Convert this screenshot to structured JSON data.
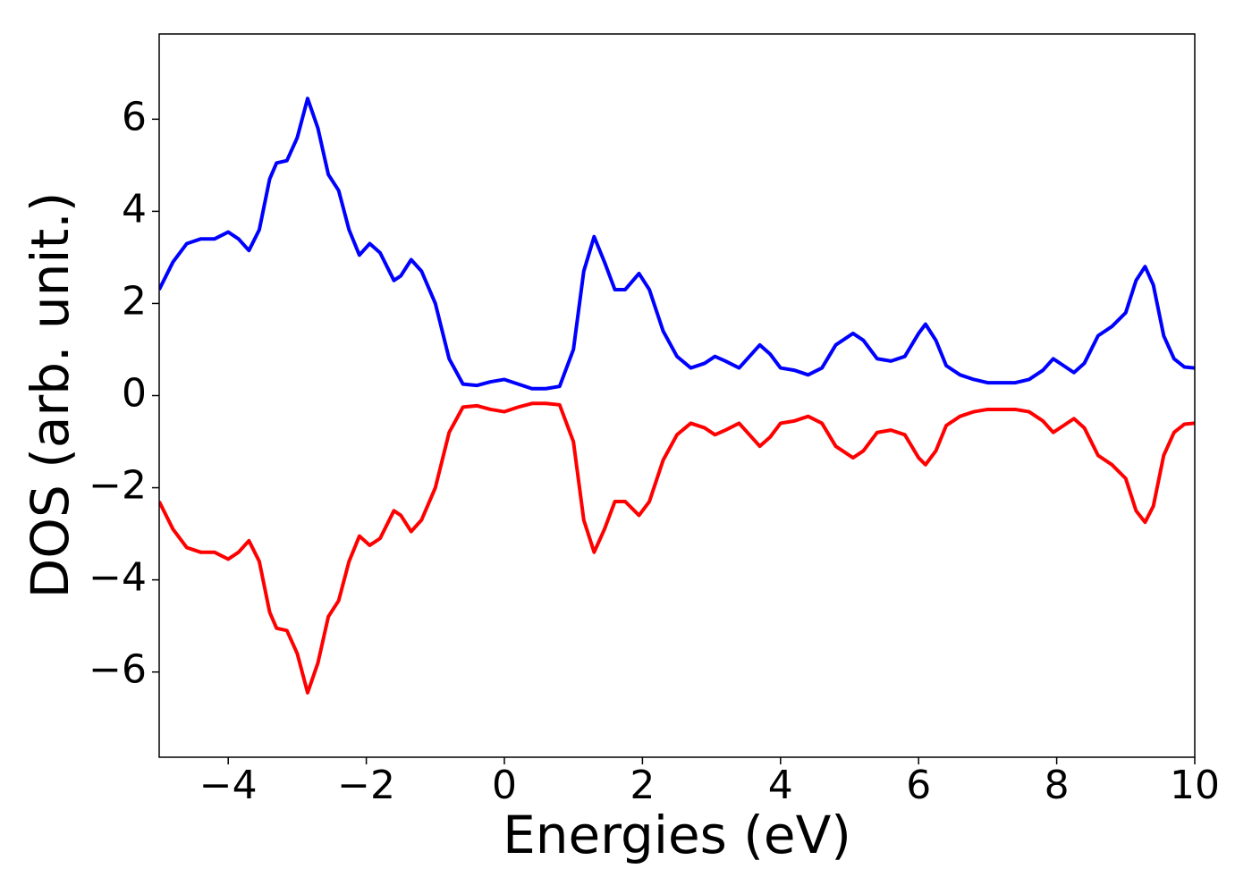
{
  "chart_data": {
    "type": "line",
    "xlabel": "Energies (eV)",
    "ylabel": "DOS (arb. unit.)",
    "x": [
      -5,
      -4.8,
      -4.6,
      -4.4,
      -4.2,
      -4.0,
      -3.85,
      -3.7,
      -3.55,
      -3.4,
      -3.3,
      -3.15,
      -3.0,
      -2.85,
      -2.7,
      -2.55,
      -2.4,
      -2.25,
      -2.1,
      -1.95,
      -1.8,
      -1.6,
      -1.5,
      -1.35,
      -1.2,
      -1.0,
      -0.8,
      -0.6,
      -0.4,
      -0.2,
      0.0,
      0.2,
      0.4,
      0.6,
      0.8,
      1.0,
      1.15,
      1.3,
      1.45,
      1.6,
      1.75,
      1.95,
      2.1,
      2.3,
      2.5,
      2.7,
      2.9,
      3.05,
      3.2,
      3.4,
      3.55,
      3.7,
      3.85,
      4.0,
      4.2,
      4.4,
      4.6,
      4.8,
      5.05,
      5.2,
      5.4,
      5.6,
      5.8,
      6.0,
      6.1,
      6.25,
      6.4,
      6.6,
      6.8,
      7.0,
      7.4,
      7.6,
      7.8,
      7.95,
      8.1,
      8.25,
      8.4,
      8.6,
      8.8,
      9.0,
      9.15,
      9.28,
      9.4,
      9.55,
      9.7,
      9.85,
      10
    ],
    "series": [
      {
        "color": "#0000ff",
        "values": [
          2.3,
          2.9,
          3.3,
          3.4,
          3.4,
          3.55,
          3.4,
          3.15,
          3.6,
          4.7,
          5.05,
          5.1,
          5.6,
          6.45,
          5.8,
          4.8,
          4.45,
          3.6,
          3.05,
          3.3,
          3.1,
          2.5,
          2.6,
          2.95,
          2.7,
          2.0,
          0.8,
          0.25,
          0.22,
          0.3,
          0.35,
          0.25,
          0.15,
          0.15,
          0.2,
          1.0,
          2.7,
          3.45,
          2.9,
          2.3,
          2.3,
          2.65,
          2.3,
          1.4,
          0.85,
          0.6,
          0.7,
          0.85,
          0.75,
          0.6,
          0.85,
          1.1,
          0.9,
          0.6,
          0.55,
          0.45,
          0.6,
          1.1,
          1.35,
          1.2,
          0.8,
          0.75,
          0.85,
          1.35,
          1.55,
          1.2,
          0.65,
          0.45,
          0.35,
          0.28,
          0.28,
          0.35,
          0.55,
          0.8,
          0.65,
          0.5,
          0.7,
          1.3,
          1.5,
          1.8,
          2.5,
          2.8,
          2.4,
          1.3,
          0.8,
          0.62,
          0.6
        ]
      },
      {
        "color": "#ff0000",
        "values": [
          -2.3,
          -2.9,
          -3.3,
          -3.4,
          -3.4,
          -3.55,
          -3.4,
          -3.15,
          -3.6,
          -4.7,
          -5.05,
          -5.1,
          -5.6,
          -6.45,
          -5.8,
          -4.8,
          -4.45,
          -3.6,
          -3.05,
          -3.25,
          -3.1,
          -2.5,
          -2.6,
          -2.95,
          -2.7,
          -2.0,
          -0.8,
          -0.25,
          -0.22,
          -0.3,
          -0.35,
          -0.25,
          -0.17,
          -0.17,
          -0.2,
          -1.0,
          -2.7,
          -3.4,
          -2.9,
          -2.3,
          -2.3,
          -2.6,
          -2.3,
          -1.4,
          -0.85,
          -0.6,
          -0.7,
          -0.85,
          -0.75,
          -0.6,
          -0.85,
          -1.1,
          -0.9,
          -0.6,
          -0.55,
          -0.45,
          -0.6,
          -1.1,
          -1.35,
          -1.2,
          -0.8,
          -0.75,
          -0.85,
          -1.35,
          -1.5,
          -1.2,
          -0.65,
          -0.45,
          -0.35,
          -0.3,
          -0.3,
          -0.35,
          -0.55,
          -0.8,
          -0.65,
          -0.5,
          -0.7,
          -1.3,
          -1.5,
          -1.8,
          -2.5,
          -2.75,
          -2.4,
          -1.3,
          -0.8,
          -0.62,
          -0.6
        ]
      }
    ],
    "xlim": [
      -5,
      10
    ],
    "xticks": [
      {
        "value": -4,
        "label": "−4"
      },
      {
        "value": -2,
        "label": "−2"
      },
      0,
      2,
      4,
      6,
      8,
      10
    ],
    "ylim": [
      -7.85,
      7.85
    ],
    "yticks": [
      {
        "value": -6,
        "label": "−6"
      },
      {
        "value": -4,
        "label": "−4"
      },
      {
        "value": -2,
        "label": "−2"
      },
      0,
      2,
      4,
      6
    ],
    "grid": false
  }
}
